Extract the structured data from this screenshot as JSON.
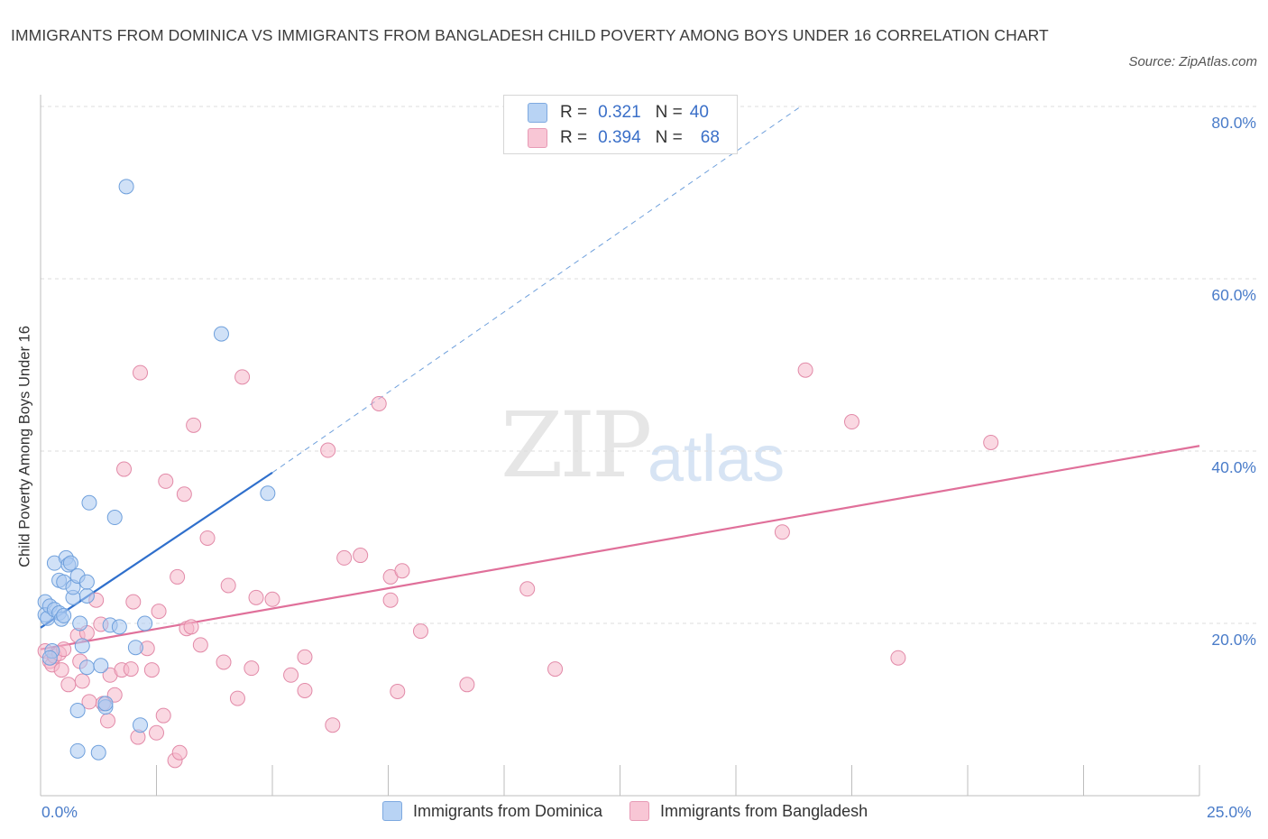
{
  "title": "IMMIGRANTS FROM DOMINICA VS IMMIGRANTS FROM BANGLADESH CHILD POVERTY AMONG BOYS UNDER 16 CORRELATION CHART",
  "source": "Source: ZipAtlas.com",
  "watermark": {
    "zip": "ZIP",
    "atlas": "atlas"
  },
  "legend": {
    "series1": {
      "r_label": "R =",
      "r_value": "0.321",
      "n_label": "N =",
      "n_value": "40",
      "name": "Immigrants from Dominica"
    },
    "series2": {
      "r_label": "R =",
      "r_value": "0.394",
      "n_label": "N =",
      "n_value": "68",
      "name": "Immigrants from Bangladesh"
    }
  },
  "colors": {
    "blue_fill": "#a9c8f0",
    "blue_stroke": "#6fa0dc",
    "blue_line": "#2f6fcc",
    "pink_fill": "#f6b8cb",
    "pink_stroke": "#e28aa8",
    "pink_line": "#e0709a",
    "grid": "#dcdcdc",
    "tick_text": "#4a7cc9"
  },
  "chart_data": {
    "type": "scatter",
    "xlabel": "",
    "ylabel": "Child Poverty Among Boys Under 16",
    "xlim": [
      0,
      25
    ],
    "ylim": [
      0,
      80
    ],
    "x_tick_labels": [
      "0.0%",
      "25.0%"
    ],
    "y_ticks": [
      20,
      40,
      60,
      80
    ],
    "y_tick_labels": [
      "20.0%",
      "40.0%",
      "60.0%",
      "80.0%"
    ],
    "grid": true,
    "series": [
      {
        "name": "Immigrants from Dominica",
        "color": "blue",
        "points": [
          [
            0.1,
            22.5
          ],
          [
            0.1,
            21.0
          ],
          [
            0.15,
            20.6
          ],
          [
            0.2,
            22.0
          ],
          [
            0.25,
            16.8
          ],
          [
            0.3,
            27.0
          ],
          [
            0.3,
            21.6
          ],
          [
            0.4,
            25.0
          ],
          [
            0.4,
            21.2
          ],
          [
            0.45,
            20.5
          ],
          [
            0.5,
            24.8
          ],
          [
            0.55,
            27.6
          ],
          [
            0.6,
            26.8
          ],
          [
            0.65,
            27.0
          ],
          [
            0.7,
            23.0
          ],
          [
            0.7,
            24.2
          ],
          [
            0.8,
            25.5
          ],
          [
            0.8,
            9.9
          ],
          [
            0.8,
            5.2
          ],
          [
            0.85,
            20.0
          ],
          [
            0.9,
            17.4
          ],
          [
            1.0,
            23.2
          ],
          [
            1.0,
            24.8
          ],
          [
            1.0,
            14.9
          ],
          [
            1.05,
            34.0
          ],
          [
            1.25,
            5.0
          ],
          [
            1.3,
            15.1
          ],
          [
            1.4,
            10.3
          ],
          [
            1.5,
            19.8
          ],
          [
            1.6,
            32.3
          ],
          [
            1.7,
            19.6
          ],
          [
            1.85,
            70.7
          ],
          [
            2.05,
            17.2
          ],
          [
            2.15,
            8.2
          ],
          [
            2.25,
            20.0
          ],
          [
            3.9,
            53.6
          ],
          [
            4.9,
            35.1
          ],
          [
            0.2,
            16.0
          ],
          [
            0.5,
            20.9
          ],
          [
            1.4,
            10.7
          ]
        ]
      },
      {
        "name": "Immigrants from Bangladesh",
        "color": "pink",
        "points": [
          [
            0.1,
            16.8
          ],
          [
            0.2,
            15.6
          ],
          [
            0.25,
            15.2
          ],
          [
            0.3,
            16.2
          ],
          [
            0.4,
            16.5
          ],
          [
            0.45,
            14.6
          ],
          [
            0.5,
            17.0
          ],
          [
            0.6,
            12.9
          ],
          [
            0.8,
            18.6
          ],
          [
            0.85,
            15.6
          ],
          [
            0.9,
            13.3
          ],
          [
            1.0,
            18.9
          ],
          [
            1.05,
            10.9
          ],
          [
            1.2,
            22.7
          ],
          [
            1.3,
            19.9
          ],
          [
            1.35,
            10.7
          ],
          [
            1.45,
            8.7
          ],
          [
            1.5,
            14.0
          ],
          [
            1.6,
            11.7
          ],
          [
            1.75,
            14.6
          ],
          [
            1.8,
            37.9
          ],
          [
            1.95,
            14.7
          ],
          [
            2.0,
            22.5
          ],
          [
            2.1,
            6.8
          ],
          [
            2.15,
            49.1
          ],
          [
            2.3,
            17.1
          ],
          [
            2.4,
            14.6
          ],
          [
            2.5,
            7.3
          ],
          [
            2.55,
            21.4
          ],
          [
            2.65,
            9.3
          ],
          [
            2.7,
            36.5
          ],
          [
            2.9,
            4.1
          ],
          [
            2.95,
            25.4
          ],
          [
            3.0,
            5.0
          ],
          [
            3.1,
            35.0
          ],
          [
            3.15,
            19.4
          ],
          [
            3.25,
            19.6
          ],
          [
            3.3,
            43.0
          ],
          [
            3.45,
            17.5
          ],
          [
            3.6,
            29.9
          ],
          [
            3.95,
            15.5
          ],
          [
            4.05,
            24.4
          ],
          [
            4.25,
            11.3
          ],
          [
            4.35,
            48.6
          ],
          [
            4.55,
            14.8
          ],
          [
            4.65,
            23.0
          ],
          [
            5.0,
            22.8
          ],
          [
            5.4,
            14.0
          ],
          [
            5.7,
            16.1
          ],
          [
            5.7,
            12.2
          ],
          [
            6.2,
            40.1
          ],
          [
            6.3,
            8.2
          ],
          [
            6.55,
            27.6
          ],
          [
            6.9,
            27.9
          ],
          [
            7.3,
            45.5
          ],
          [
            7.55,
            25.4
          ],
          [
            7.55,
            22.7
          ],
          [
            7.8,
            26.1
          ],
          [
            7.7,
            12.1
          ],
          [
            8.2,
            19.1
          ],
          [
            9.2,
            12.9
          ],
          [
            10.5,
            24.0
          ],
          [
            11.1,
            14.7
          ],
          [
            16.0,
            30.6
          ],
          [
            16.5,
            49.4
          ],
          [
            17.5,
            43.4
          ],
          [
            18.5,
            16.0
          ],
          [
            20.5,
            41.0
          ]
        ]
      }
    ],
    "trendlines": [
      {
        "series": "Immigrants from Dominica",
        "from": [
          0.0,
          19.5
        ],
        "to": [
          5.0,
          37.5
        ],
        "extended_to": [
          16.4,
          80.0
        ],
        "style": "solid then dashed"
      },
      {
        "series": "Immigrants from Bangladesh",
        "from": [
          0.0,
          17.0
        ],
        "to": [
          25.0,
          40.6
        ],
        "style": "solid"
      }
    ]
  }
}
